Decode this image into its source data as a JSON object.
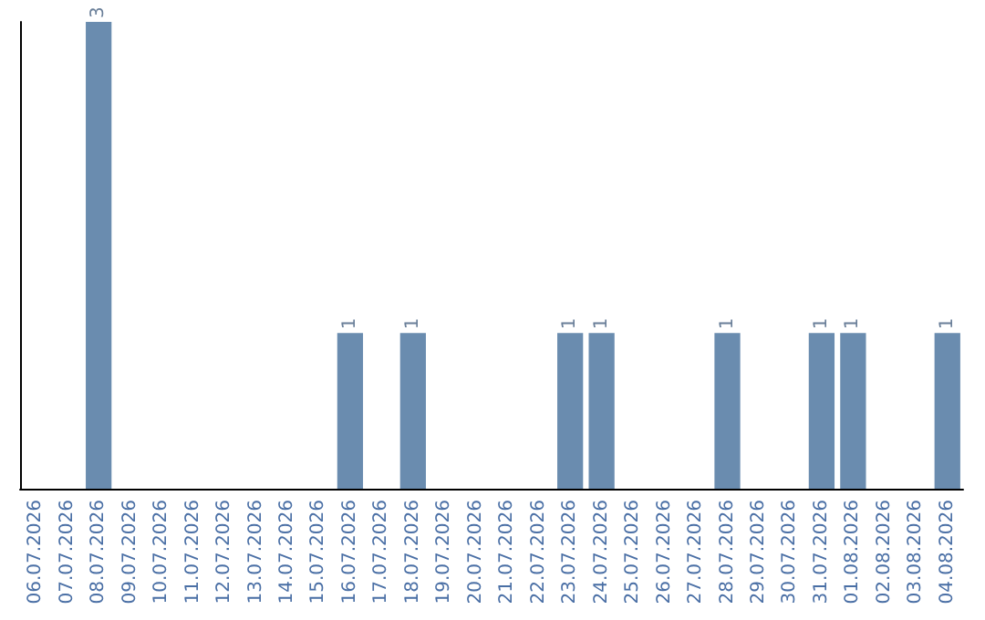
{
  "chart_data": {
    "type": "bar",
    "categories": [
      "06.07.2026",
      "07.07.2026",
      "08.07.2026",
      "09.07.2026",
      "10.07.2026",
      "11.07.2026",
      "12.07.2026",
      "13.07.2026",
      "14.07.2026",
      "15.07.2026",
      "16.07.2026",
      "17.07.2026",
      "18.07.2026",
      "19.07.2026",
      "20.07.2026",
      "21.07.2026",
      "22.07.2026",
      "23.07.2026",
      "24.07.2026",
      "25.07.2026",
      "26.07.2026",
      "27.07.2026",
      "28.07.2026",
      "29.07.2026",
      "30.07.2026",
      "31.07.2026",
      "01.08.2026",
      "02.08.2026",
      "03.08.2026",
      "04.08.2026"
    ],
    "values": [
      0,
      0,
      3,
      0,
      0,
      0,
      0,
      0,
      0,
      0,
      1,
      0,
      1,
      0,
      0,
      0,
      0,
      1,
      1,
      0,
      0,
      0,
      1,
      0,
      0,
      1,
      1,
      0,
      0,
      1
    ],
    "value_labels": [
      null,
      null,
      "3",
      null,
      null,
      null,
      null,
      null,
      null,
      null,
      "1",
      null,
      "1",
      null,
      null,
      null,
      null,
      "1",
      "1",
      null,
      null,
      null,
      "1",
      null,
      null,
      "1",
      "1",
      null,
      null,
      "1"
    ],
    "color": "#6a8caf",
    "grid": false,
    "tick_labels": "x"
  }
}
